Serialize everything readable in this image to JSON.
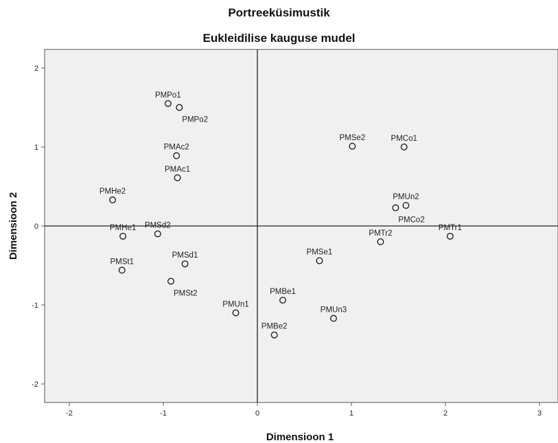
{
  "chart_data": {
    "type": "scatter",
    "title": "Portreeküsimustik",
    "subtitle": "Eukleidilise kauguse mudel",
    "xlabel": "Dimensioon 1",
    "ylabel": "Dimensioon 2",
    "xlim": [
      -2.3,
      3.2
    ],
    "ylim": [
      -2.25,
      2.25
    ],
    "xticks": [
      -2,
      -1,
      0,
      1,
      2,
      3
    ],
    "yticks": [
      -2,
      -1,
      0,
      1,
      2
    ],
    "grid": false,
    "reference_lines": {
      "x": 0,
      "y": 0
    },
    "points": [
      {
        "label": "PMPo1",
        "x": -0.95,
        "y": 1.55,
        "label_pos": "above"
      },
      {
        "label": "PMPo2",
        "x": -0.83,
        "y": 1.5,
        "label_pos": "below-right"
      },
      {
        "label": "PMAc2",
        "x": -0.86,
        "y": 0.89,
        "label_pos": "above"
      },
      {
        "label": "PMAc1",
        "x": -0.85,
        "y": 0.61,
        "label_pos": "above"
      },
      {
        "label": "PMHe2",
        "x": -1.54,
        "y": 0.33,
        "label_pos": "above"
      },
      {
        "label": "PMHe1",
        "x": -1.43,
        "y": -0.13,
        "label_pos": "above"
      },
      {
        "label": "PMSd2",
        "x": -1.06,
        "y": -0.1,
        "label_pos": "above"
      },
      {
        "label": "PMSt1",
        "x": -1.44,
        "y": -0.56,
        "label_pos": "above"
      },
      {
        "label": "PMSd1",
        "x": -0.77,
        "y": -0.48,
        "label_pos": "above"
      },
      {
        "label": "PMSt2",
        "x": -0.92,
        "y": -0.7,
        "label_pos": "below-right"
      },
      {
        "label": "PMUn1",
        "x": -0.23,
        "y": -1.1,
        "label_pos": "above"
      },
      {
        "label": "PMBe1",
        "x": 0.27,
        "y": -0.94,
        "label_pos": "above"
      },
      {
        "label": "PMBe2",
        "x": 0.18,
        "y": -1.38,
        "label_pos": "above"
      },
      {
        "label": "PMSe1",
        "x": 0.66,
        "y": -0.44,
        "label_pos": "above"
      },
      {
        "label": "PMUn3",
        "x": 0.81,
        "y": -1.17,
        "label_pos": "above"
      },
      {
        "label": "PMSe2",
        "x": 1.01,
        "y": 1.01,
        "label_pos": "above"
      },
      {
        "label": "PMCo1",
        "x": 1.56,
        "y": 1.0,
        "label_pos": "above"
      },
      {
        "label": "PMUn2",
        "x": 1.58,
        "y": 0.26,
        "label_pos": "above"
      },
      {
        "label": "PMCo2",
        "x": 1.47,
        "y": 0.23,
        "label_pos": "below-right"
      },
      {
        "label": "PMTr2",
        "x": 1.31,
        "y": -0.2,
        "label_pos": "above"
      },
      {
        "label": "PMTr1",
        "x": 2.05,
        "y": -0.13,
        "label_pos": "above"
      }
    ]
  },
  "colors": {
    "plot_background": "#f0f0f0",
    "frame": "#555555",
    "marker_stroke": "#222222",
    "marker_fill": "#f0f0f0",
    "reference_line": "#222222",
    "text": "#222222"
  }
}
